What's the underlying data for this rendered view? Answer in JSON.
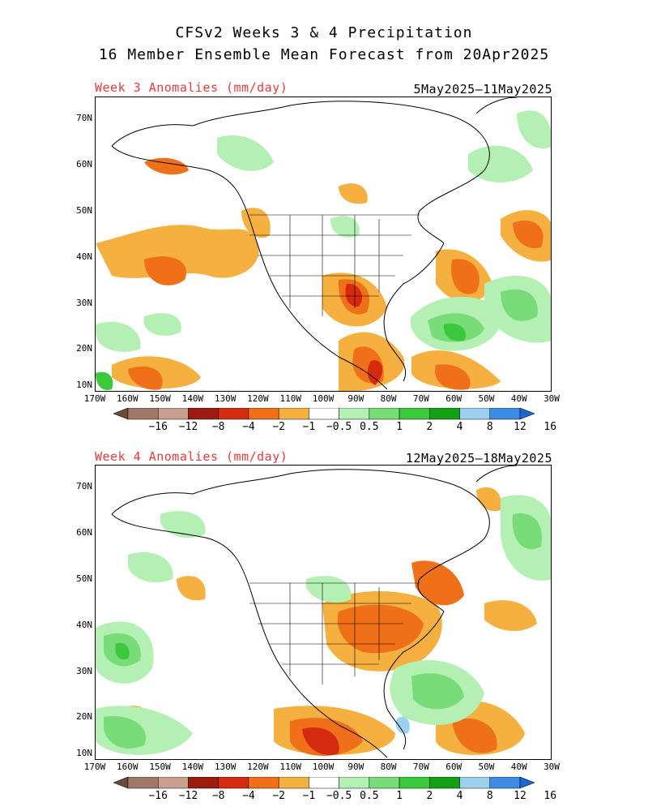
{
  "title_line1": "CFSv2 Weeks 3 & 4 Precipitation",
  "title_line2": "16 Member Ensemble Mean Forecast from 20Apr2025",
  "panels": [
    {
      "label": "Week 3 Anomalies (mm/day)",
      "dates": "5May2025–11May2025"
    },
    {
      "label": "Week 4 Anomalies (mm/day)",
      "dates": "12May2025–18May2025"
    }
  ],
  "lat_labels": [
    "70N",
    "60N",
    "50N",
    "40N",
    "30N",
    "20N",
    "10N"
  ],
  "lon_labels": [
    "170W",
    "160W",
    "150W",
    "140W",
    "130W",
    "120W",
    "110W",
    "100W",
    "90W",
    "80W",
    "70W",
    "60W",
    "50W",
    "40W",
    "30W"
  ],
  "colorbar": {
    "labels": [
      "−16",
      "−12",
      "−8",
      "−4",
      "−2",
      "−1",
      "−0.5",
      "0.5",
      "1",
      "2",
      "4",
      "8",
      "12",
      "16"
    ],
    "colors": [
      "#6b4a3a",
      "#a07868",
      "#c8a090",
      "#9b1b10",
      "#d42a10",
      "#f0701a",
      "#f5b040",
      "#ffffff",
      "#b4f0b4",
      "#78dc78",
      "#3cc83c",
      "#14a014",
      "#9cd2f0",
      "#3c8ce6",
      "#1e64d2"
    ]
  }
}
